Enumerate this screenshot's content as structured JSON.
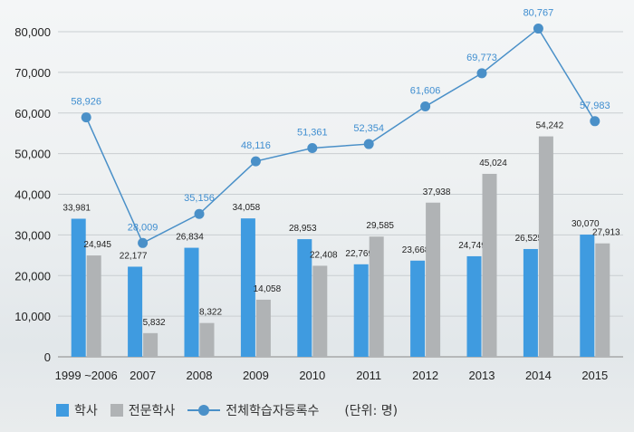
{
  "chart_data": {
    "type": "bar",
    "categories": [
      "1999 ~2006",
      "2007",
      "2008",
      "2009",
      "2010",
      "2011",
      "2012",
      "2013",
      "2014",
      "2015"
    ],
    "series": [
      {
        "name": "학사",
        "type": "bar",
        "color": "#3f9be0",
        "values": [
          33981,
          22177,
          26834,
          34058,
          28953,
          22769,
          23668,
          24749,
          26525,
          30070
        ]
      },
      {
        "name": "전문학사",
        "type": "bar",
        "color": "#b0b3b5",
        "values": [
          24945,
          5832,
          8322,
          14058,
          22408,
          29585,
          37938,
          45024,
          54242,
          27913
        ]
      },
      {
        "name": "전체학습자등록수",
        "type": "line",
        "color": "#4a90c8",
        "values": [
          58926,
          28009,
          35156,
          48116,
          51361,
          52354,
          61606,
          69773,
          80767,
          57983
        ]
      }
    ],
    "y_ticks": [
      "0",
      "10,000",
      "20,000",
      "30,000",
      "40,000",
      "50,000",
      "60,000",
      "70,000",
      "80,000"
    ],
    "ylim": [
      0,
      80000
    ],
    "grid": true,
    "unit_label": "(단위: 명)"
  }
}
